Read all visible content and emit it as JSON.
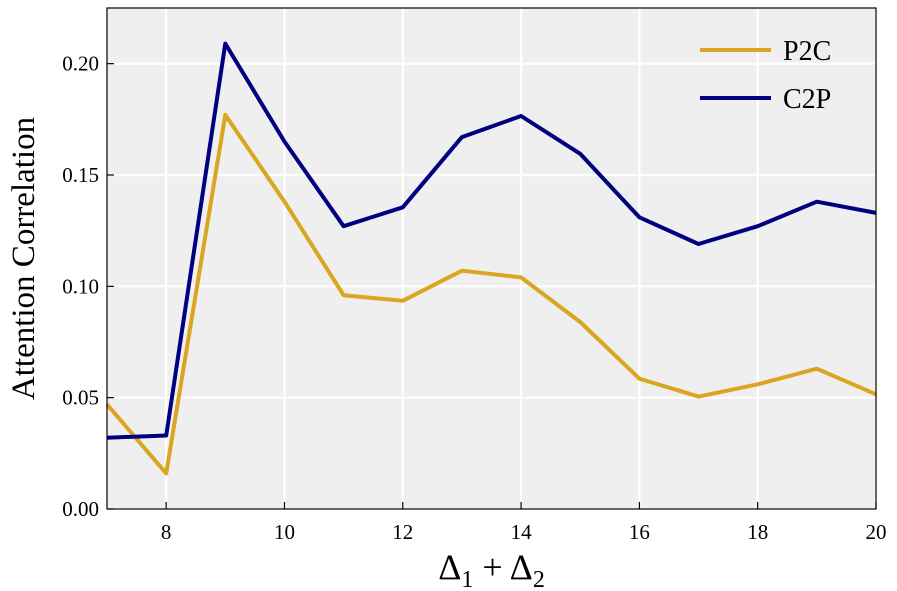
{
  "chart_data": {
    "type": "line",
    "xlabel": "Δ1 + Δ2",
    "ylabel": "Attention Correlation",
    "xlim": [
      7,
      20
    ],
    "ylim": [
      0.0,
      0.225
    ],
    "x_ticks": [
      8,
      10,
      12,
      14,
      16,
      18,
      20
    ],
    "y_ticks": [
      0.0,
      0.05,
      0.1,
      0.15,
      0.2
    ],
    "x_tick_labels": [
      "8",
      "10",
      "12",
      "14",
      "16",
      "18",
      "20"
    ],
    "y_tick_labels": [
      "0.00",
      "0.05",
      "0.10",
      "0.15",
      "0.20"
    ],
    "grid": true,
    "legend_position": "top-right",
    "plot_background": "#efefef",
    "x": [
      7,
      8,
      9,
      10,
      11,
      12,
      13,
      14,
      15,
      16,
      17,
      18,
      19,
      20
    ],
    "series": [
      {
        "name": "P2C",
        "color": "#DAA520",
        "values": [
          0.047,
          0.016,
          0.177,
          0.138,
          0.096,
          0.0935,
          0.107,
          0.104,
          0.084,
          0.0585,
          0.0505,
          0.056,
          0.063,
          0.0515
        ]
      },
      {
        "name": "C2P",
        "color": "#000080",
        "values": [
          0.032,
          0.033,
          0.209,
          0.165,
          0.127,
          0.1355,
          0.167,
          0.1765,
          0.1595,
          0.131,
          0.119,
          0.127,
          0.138,
          0.133
        ]
      }
    ]
  }
}
